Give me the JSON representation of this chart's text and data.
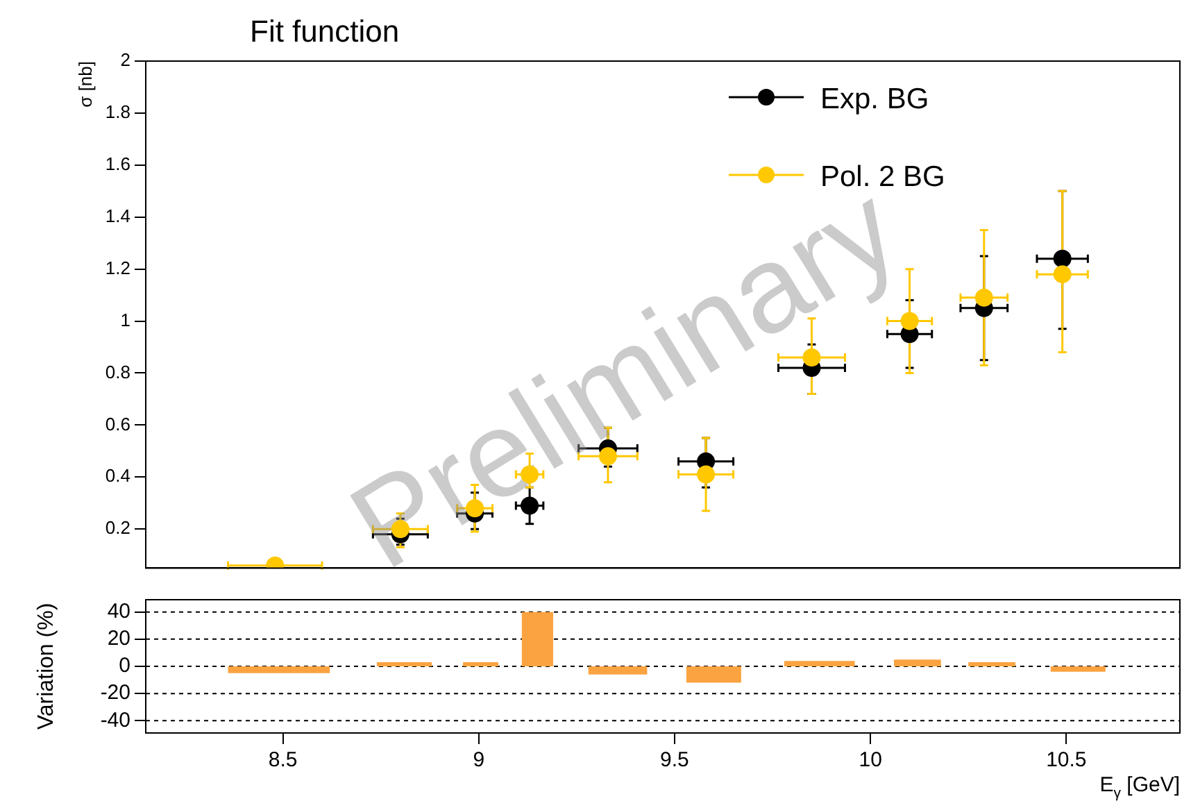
{
  "chart_data": [
    {
      "type": "scatter",
      "title": "Fit function",
      "ylabel": "σ [nb]",
      "x": [
        8.48,
        8.8,
        8.99,
        9.13,
        9.33,
        9.58,
        9.85,
        10.1,
        10.29,
        10.49
      ],
      "series": [
        {
          "name": "Exp. BG",
          "color": "#000000",
          "values": [
            null,
            0.18,
            0.26,
            0.29,
            0.51,
            0.46,
            0.82,
            0.95,
            1.05,
            1.24
          ],
          "errors": [
            null,
            [
              0.14,
              0.24
            ],
            [
              0.2,
              0.34
            ],
            [
              0.22,
              0.36
            ],
            [
              0.44,
              0.59
            ],
            [
              0.36,
              0.55
            ],
            [
              0.72,
              0.91
            ],
            [
              0.82,
              1.08
            ],
            [
              0.85,
              1.25
            ],
            [
              0.97,
              1.5
            ]
          ],
          "xerrors": [
            null,
            0.07,
            0.045,
            0.035,
            0.075,
            0.07,
            0.085,
            0.057,
            0.06,
            0.065
          ]
        },
        {
          "name": "Pol. 2 BG",
          "color": "#ffc800",
          "values": [
            0.06,
            0.2,
            0.28,
            0.41,
            0.48,
            0.41,
            0.86,
            1.0,
            1.09,
            1.18
          ],
          "errors": [
            null,
            [
              0.13,
              0.26
            ],
            [
              0.19,
              0.37
            ],
            [
              0.36,
              0.49
            ],
            [
              0.38,
              0.59
            ],
            [
              0.27,
              0.55
            ],
            [
              0.72,
              1.01
            ],
            [
              0.8,
              1.2
            ],
            [
              0.83,
              1.35
            ],
            [
              0.88,
              1.5
            ]
          ],
          "xerrors": [
            0.12,
            0.07,
            0.045,
            0.035,
            0.075,
            0.07,
            0.085,
            0.057,
            0.06,
            0.065
          ]
        }
      ],
      "xlim": [
        8.15,
        10.79
      ],
      "xticks": [
        8.5,
        9,
        9.5,
        10,
        10.5
      ],
      "ylim": [
        0.05,
        2
      ],
      "yticks": [
        0.2,
        0.4,
        0.6,
        0.8,
        1,
        1.2,
        1.4,
        1.6,
        1.8,
        2
      ],
      "tick_labels": "y",
      "marker": "circle",
      "legend": "top right",
      "grid": false,
      "annotations": [
        "Preliminary"
      ]
    },
    {
      "type": "histogram",
      "xlabel": "E$_{γ}$ [GeV]",
      "ylabel": "Variation (%)",
      "color": "#fba340",
      "bins": [
        8.36,
        8.62,
        8.74,
        8.88,
        8.96,
        9.05,
        9.11,
        9.19,
        9.28,
        9.43,
        9.53,
        9.67,
        9.78,
        9.96,
        10.06,
        10.18,
        10.25,
        10.37,
        10.46,
        10.6
      ],
      "values": [
        -5,
        null,
        3,
        null,
        3,
        null,
        40,
        null,
        -6,
        null,
        -12,
        null,
        4,
        null,
        5,
        null,
        3,
        null,
        -4
      ],
      "xlim": [
        8.15,
        10.79
      ],
      "xticks": [
        8.5,
        9,
        9.5,
        10,
        10.5
      ],
      "ylim": [
        -49,
        49
      ],
      "yticks": [
        -40,
        -20,
        0,
        20,
        40
      ],
      "grid": "y"
    }
  ]
}
